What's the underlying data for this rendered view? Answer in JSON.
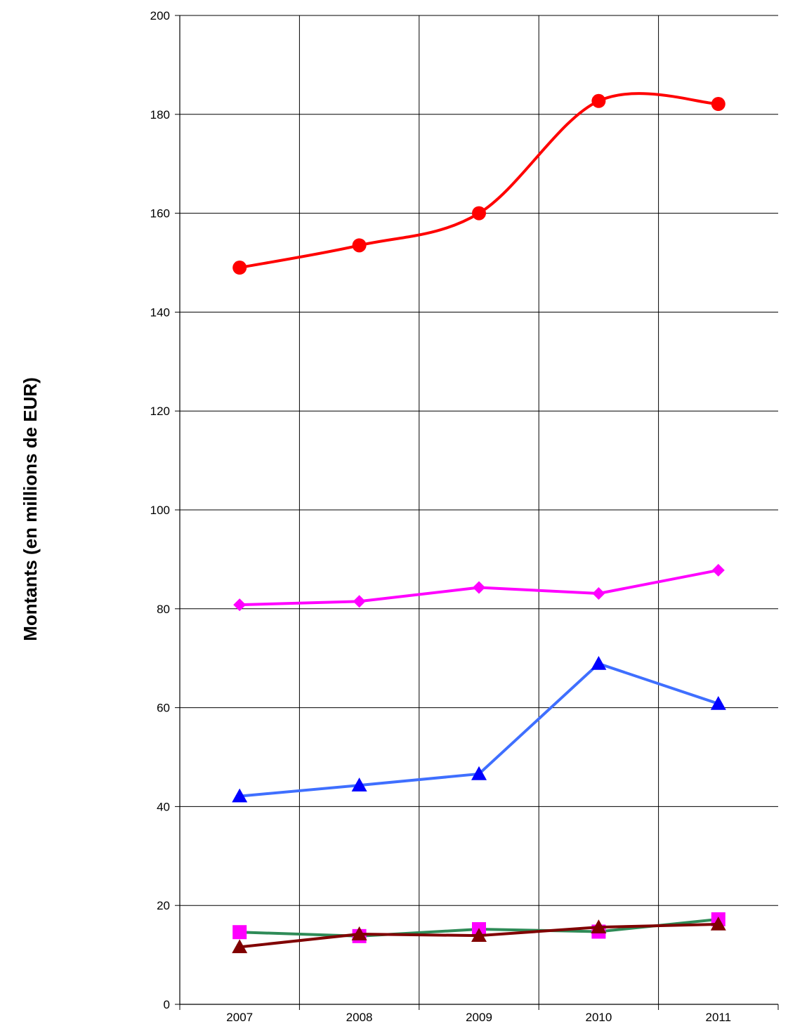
{
  "chart_data": {
    "type": "line",
    "title": "",
    "xlabel": "",
    "ylabel": "Montants (en millions de EUR)",
    "categories": [
      "2007",
      "2008",
      "2009",
      "2010",
      "2011"
    ],
    "ylim": [
      0,
      200
    ],
    "yticks": [
      0,
      20,
      40,
      60,
      80,
      100,
      120,
      140,
      160,
      180,
      200
    ],
    "grid": true,
    "legend": "none",
    "series": [
      {
        "color": "#ff0000",
        "line_color": "#ff0000",
        "marker": "circle",
        "smooth": true,
        "values": [
          149,
          153.5,
          160,
          182.7,
          182.1
        ]
      },
      {
        "color": "#ff00ff",
        "line_color": "#ff00ff",
        "marker": "diamond",
        "smooth": false,
        "values": [
          80.8,
          81.5,
          84.3,
          83.1,
          87.8
        ]
      },
      {
        "color": "#0000ff",
        "line_color": "#3f6fff",
        "marker": "triangle",
        "smooth": false,
        "values": [
          42.1,
          44.3,
          46.6,
          68.9,
          60.8
        ]
      },
      {
        "color": "#ff00ff",
        "line_color": "#2e8b57",
        "marker": "square",
        "smooth": false,
        "values": [
          14.6,
          13.8,
          15.2,
          14.7,
          17.2
        ]
      },
      {
        "color": "#800000",
        "line_color": "#800000",
        "marker": "triangle",
        "smooth": false,
        "values": [
          11.6,
          14.2,
          13.9,
          15.6,
          16.2
        ]
      }
    ]
  }
}
